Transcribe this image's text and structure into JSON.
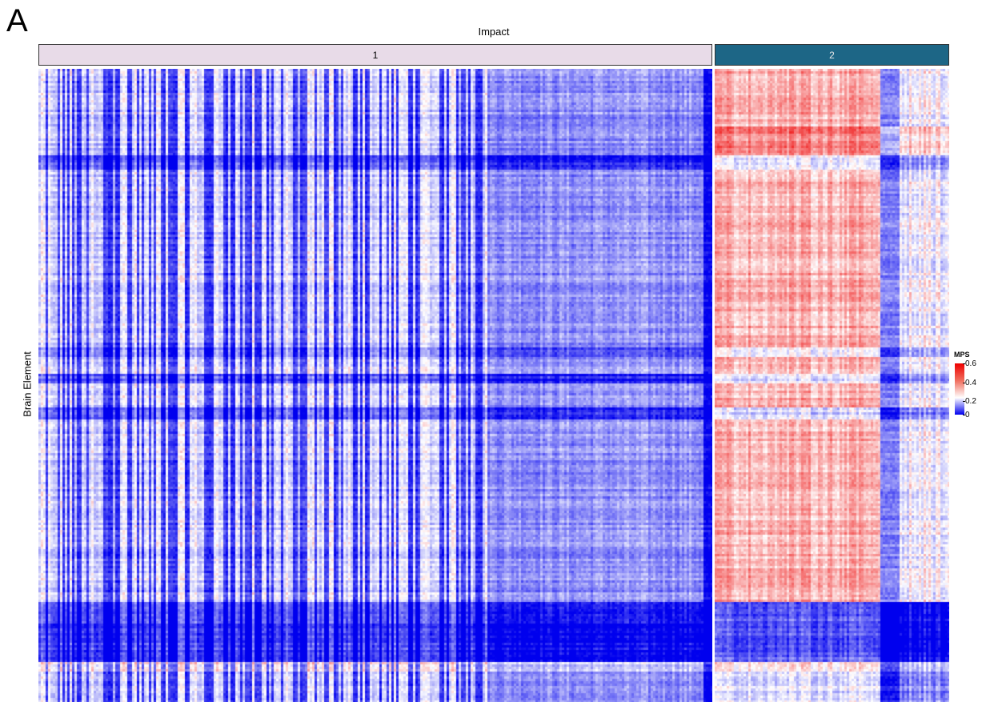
{
  "panel_label": "A",
  "chart_data": {
    "type": "heatmap",
    "title": "Impact",
    "ylabel": "Brain Element",
    "xlabel": "",
    "facets": [
      {
        "label": "1",
        "strip_color": "#e8dbe8",
        "description_of_values": "predominantly low MPS (blue), with lighter vertical bands",
        "approx_value_range": [
          0.0,
          0.25
        ]
      },
      {
        "label": "2",
        "strip_color": "#1d6686",
        "description_of_values": "predominantly moderate MPS (light red/orange), some near-zero bands",
        "approx_value_range": [
          0.0,
          0.6
        ]
      }
    ],
    "legend": {
      "title": "MPS",
      "ticks": [
        "0.6",
        "0.4",
        "0.2",
        "0"
      ],
      "range": [
        0,
        0.65
      ],
      "colors": {
        "low": "#0000ee",
        "mid": "#ffffff",
        "high": "#ee0000"
      },
      "placement": "right"
    }
  }
}
